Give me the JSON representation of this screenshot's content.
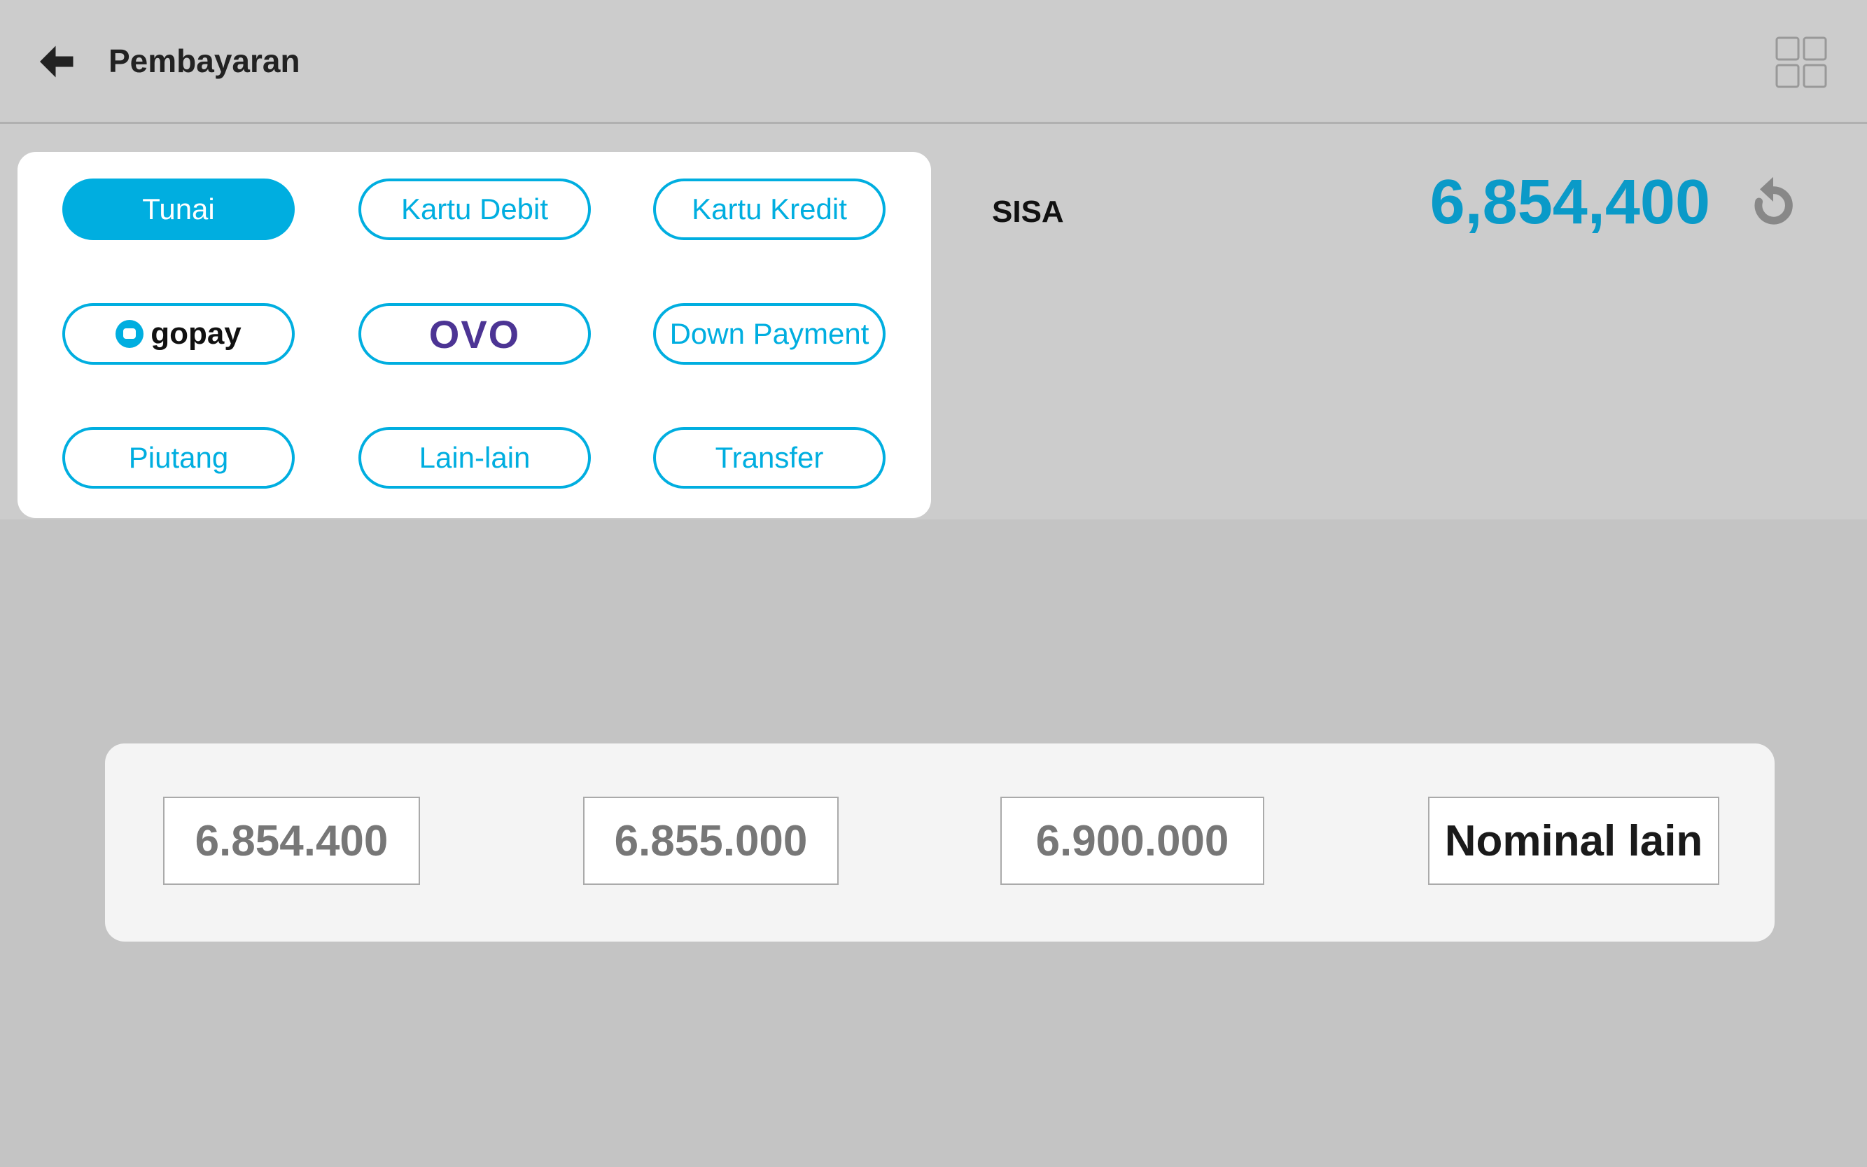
{
  "header": {
    "title": "Pembayaran",
    "back_icon": "arrow-left-icon",
    "menu_icon": "grid-icon"
  },
  "payment_methods": [
    {
      "label": "Tunai",
      "active": true
    },
    {
      "label": "Kartu Debit",
      "active": false
    },
    {
      "label": "Kartu Kredit",
      "active": false
    },
    {
      "label": "gopay",
      "active": false
    },
    {
      "label": "OVO",
      "active": false
    },
    {
      "label": "Down Payment",
      "active": false
    },
    {
      "label": "Piutang",
      "active": false
    },
    {
      "label": "Lain-lain",
      "active": false
    },
    {
      "label": "Transfer",
      "active": false
    }
  ],
  "summary": {
    "label": "SISA",
    "amount": "6,854,400",
    "reset_icon": "refresh-icon"
  },
  "nominal_options": [
    "6.854.400",
    "6.855.000",
    "6.900.000",
    "Nominal lain"
  ],
  "colors": {
    "accent": "#00aee0",
    "amount": "#0a9ac8",
    "ovo": "#4c3494"
  }
}
